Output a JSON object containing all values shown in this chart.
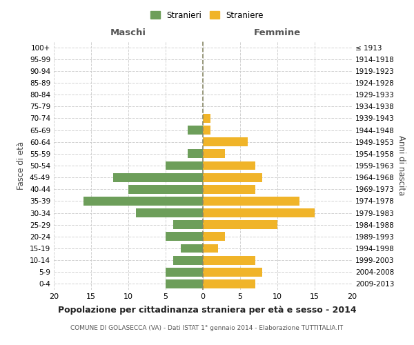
{
  "age_groups": [
    "100+",
    "95-99",
    "90-94",
    "85-89",
    "80-84",
    "75-79",
    "70-74",
    "65-69",
    "60-64",
    "55-59",
    "50-54",
    "45-49",
    "40-44",
    "35-39",
    "30-34",
    "25-29",
    "20-24",
    "15-19",
    "10-14",
    "5-9",
    "0-4"
  ],
  "birth_years": [
    "≤ 1913",
    "1914-1918",
    "1919-1923",
    "1924-1928",
    "1929-1933",
    "1934-1938",
    "1939-1943",
    "1944-1948",
    "1949-1953",
    "1954-1958",
    "1959-1963",
    "1964-1968",
    "1969-1973",
    "1974-1978",
    "1979-1983",
    "1984-1988",
    "1989-1993",
    "1994-1998",
    "1999-2003",
    "2004-2008",
    "2009-2013"
  ],
  "males": [
    0,
    0,
    0,
    0,
    0,
    0,
    0,
    2,
    0,
    2,
    5,
    12,
    10,
    16,
    9,
    4,
    5,
    3,
    4,
    5,
    5
  ],
  "females": [
    0,
    0,
    0,
    0,
    0,
    0,
    1,
    1,
    6,
    3,
    7,
    8,
    7,
    13,
    15,
    10,
    3,
    2,
    7,
    8,
    7
  ],
  "male_color": "#6d9e5a",
  "female_color": "#f0b429",
  "male_label": "Stranieri",
  "female_label": "Straniere",
  "title": "Popolazione per cittadinanza straniera per età e sesso - 2014",
  "subtitle": "COMUNE DI GOLASECCA (VA) - Dati ISTAT 1° gennaio 2014 - Elaborazione TUTTITALIA.IT",
  "xlabel_left": "Maschi",
  "xlabel_right": "Femmine",
  "ylabel_left": "Fasce di età",
  "ylabel_right": "Anni di nascita",
  "xlim": 20,
  "background_color": "#ffffff",
  "grid_color": "#cccccc"
}
